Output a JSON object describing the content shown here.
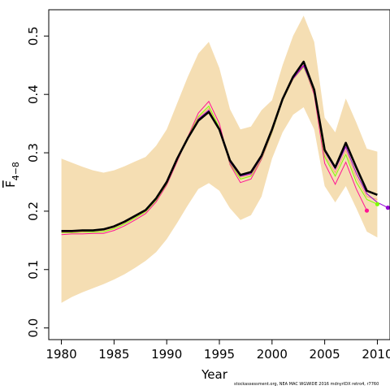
{
  "chart_data": {
    "type": "line",
    "xlabel": "Year",
    "ylabel_main": "F",
    "ylabel_sub": "4−8",
    "xlim": [
      1978.8,
      2011.2
    ],
    "ylim": [
      -0.02,
      0.545
    ],
    "xticks": [
      1980,
      1985,
      1990,
      1995,
      2000,
      2005,
      2010
    ],
    "yticks": [
      0.0,
      0.1,
      0.2,
      0.3,
      0.4,
      0.5
    ],
    "ytick_labels": [
      "0.0",
      "0.1",
      "0.2",
      "0.3",
      "0.4",
      "0.5"
    ],
    "colors": {
      "band": "#f5deb3",
      "main": "#000000",
      "retro": [
        "#ff1493",
        "#7fff00",
        "#ffa07a",
        "#9400d3"
      ]
    },
    "band": {
      "x": [
        1980,
        1981,
        1982,
        1983,
        1984,
        1985,
        1986,
        1987,
        1988,
        1989,
        1990,
        1991,
        1992,
        1993,
        1994,
        1995,
        1996,
        1997,
        1998,
        1999,
        2000,
        2001,
        2002,
        2003,
        2004,
        2005,
        2006,
        2007,
        2008,
        2009,
        2010
      ],
      "lower": [
        0.043,
        0.053,
        0.061,
        0.068,
        0.075,
        0.083,
        0.092,
        0.103,
        0.115,
        0.13,
        0.152,
        0.18,
        0.21,
        0.238,
        0.248,
        0.235,
        0.205,
        0.185,
        0.193,
        0.225,
        0.29,
        0.335,
        0.365,
        0.378,
        0.34,
        0.243,
        0.215,
        0.243,
        0.205,
        0.165,
        0.155
      ],
      "upper": [
        0.29,
        0.283,
        0.276,
        0.27,
        0.266,
        0.27,
        0.277,
        0.285,
        0.293,
        0.312,
        0.34,
        0.385,
        0.43,
        0.47,
        0.49,
        0.445,
        0.375,
        0.34,
        0.345,
        0.373,
        0.39,
        0.45,
        0.5,
        0.535,
        0.49,
        0.36,
        0.335,
        0.393,
        0.352,
        0.307,
        0.302
      ]
    },
    "series": [
      {
        "x": [
          1980,
          1981,
          1982,
          1983,
          1984,
          1985,
          1986,
          1987,
          1988,
          1989,
          1990,
          1991,
          1992,
          1993,
          1994,
          1995,
          1996,
          1997,
          1998,
          1999,
          2000,
          2001,
          2002,
          2003,
          2004,
          2005,
          2006,
          2007,
          2008,
          2009
        ],
        "values": [
          0.16,
          0.161,
          0.161,
          0.162,
          0.162,
          0.167,
          0.175,
          0.185,
          0.196,
          0.216,
          0.245,
          0.285,
          0.327,
          0.368,
          0.388,
          0.35,
          0.28,
          0.249,
          0.255,
          0.289,
          0.335,
          0.392,
          0.43,
          0.45,
          0.4,
          0.282,
          0.246,
          0.284,
          0.238,
          0.201
        ]
      },
      {
        "x": [
          1980,
          1981,
          1982,
          1983,
          1984,
          1985,
          1986,
          1987,
          1988,
          1989,
          1990,
          1991,
          1992,
          1993,
          1994,
          1995,
          1996,
          1997,
          1998,
          1999,
          2000,
          2001,
          2002,
          2003,
          2004,
          2005,
          2006,
          2007,
          2008,
          2009,
          2010
        ],
        "values": [
          0.163,
          0.163,
          0.164,
          0.164,
          0.165,
          0.17,
          0.178,
          0.188,
          0.199,
          0.219,
          0.247,
          0.287,
          0.326,
          0.362,
          0.38,
          0.343,
          0.282,
          0.255,
          0.26,
          0.29,
          0.335,
          0.39,
          0.426,
          0.447,
          0.404,
          0.293,
          0.26,
          0.297,
          0.25,
          0.22,
          0.212
        ]
      },
      {
        "x": [
          1980,
          1981,
          1982,
          1983,
          1984,
          1985,
          1986,
          1987,
          1988,
          1989,
          1990,
          1991,
          1992,
          1993,
          1994,
          1995,
          1996,
          1997,
          1998,
          1999,
          2000,
          2001,
          2002,
          2003,
          2004,
          2005,
          2006,
          2007,
          2008,
          2009,
          2010
        ],
        "values": [
          0.164,
          0.164,
          0.165,
          0.166,
          0.167,
          0.172,
          0.18,
          0.19,
          0.2,
          0.22,
          0.248,
          0.287,
          0.325,
          0.36,
          0.376,
          0.34,
          0.283,
          0.258,
          0.262,
          0.291,
          0.336,
          0.39,
          0.426,
          0.448,
          0.405,
          0.297,
          0.266,
          0.304,
          0.258,
          0.225,
          0.22
        ]
      },
      {
        "x": [
          1980,
          1981,
          1982,
          1983,
          1984,
          1985,
          1986,
          1987,
          1988,
          1989,
          1990,
          1991,
          1992,
          1993,
          1994,
          1995,
          1996,
          1997,
          1998,
          1999,
          2000,
          2001,
          2002,
          2003,
          2004,
          2005,
          2006,
          2007,
          2008,
          2009,
          2010,
          2011
        ],
        "values": [
          0.165,
          0.165,
          0.166,
          0.166,
          0.168,
          0.173,
          0.181,
          0.191,
          0.201,
          0.221,
          0.249,
          0.288,
          0.325,
          0.358,
          0.373,
          0.338,
          0.284,
          0.26,
          0.264,
          0.292,
          0.337,
          0.391,
          0.427,
          0.449,
          0.406,
          0.302,
          0.272,
          0.31,
          0.265,
          0.23,
          0.215,
          0.206
        ]
      }
    ],
    "main": {
      "x": [
        1980,
        1981,
        1982,
        1983,
        1984,
        1985,
        1986,
        1987,
        1988,
        1989,
        1990,
        1991,
        1992,
        1993,
        1994,
        1995,
        1996,
        1997,
        1998,
        1999,
        2000,
        2001,
        2002,
        2003,
        2004,
        2005,
        2006,
        2007,
        2008,
        2009,
        2010
      ],
      "values": [
        0.166,
        0.166,
        0.167,
        0.167,
        0.169,
        0.174,
        0.182,
        0.192,
        0.202,
        0.222,
        0.25,
        0.29,
        0.325,
        0.355,
        0.37,
        0.34,
        0.287,
        0.262,
        0.267,
        0.295,
        0.34,
        0.392,
        0.43,
        0.456,
        0.408,
        0.305,
        0.275,
        0.317,
        0.275,
        0.235,
        0.228
      ]
    },
    "endpoints": [
      {
        "x": 2009,
        "y": 0.201,
        "color": "#ff1493"
      },
      {
        "x": 2010,
        "y": 0.212,
        "color": "#7fff00"
      },
      {
        "x": 2011,
        "y": 0.206,
        "color": "#9400d3"
      }
    ]
  },
  "footnote": "stockassessment.org, NEA MAC WGWIDE 2016 mdnyrIDX retro4, r7760"
}
